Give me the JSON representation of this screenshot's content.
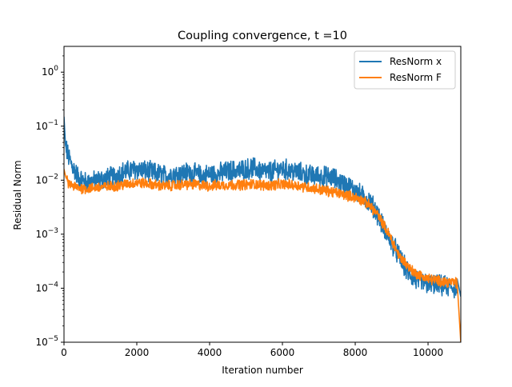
{
  "chart_data": {
    "type": "line",
    "title": "Coupling convergence, t =10",
    "xlabel": "Iteration number",
    "ylabel": "Residual Norm",
    "xlim": [
      0,
      10900
    ],
    "ylim": [
      1e-05,
      3
    ],
    "yscale": "log",
    "grid": false,
    "legend_position": "top-right",
    "x_ticks": [
      {
        "value": 0,
        "label": "0"
      },
      {
        "value": 2000,
        "label": "2000"
      },
      {
        "value": 4000,
        "label": "4000"
      },
      {
        "value": 6000,
        "label": "6000"
      },
      {
        "value": 8000,
        "label": "8000"
      },
      {
        "value": 10000,
        "label": "10000"
      }
    ],
    "y_ticks": [
      {
        "value": 1e-05,
        "base": "10",
        "exp": "−5"
      },
      {
        "value": 0.0001,
        "base": "10",
        "exp": "−4"
      },
      {
        "value": 0.001,
        "base": "10",
        "exp": "−3"
      },
      {
        "value": 0.01,
        "base": "10",
        "exp": "−2"
      },
      {
        "value": 0.1,
        "base": "10",
        "exp": "−1"
      },
      {
        "value": 1,
        "base": "10",
        "exp": "0"
      }
    ],
    "series": [
      {
        "name": "ResNorm x",
        "color": "#1f77b4",
        "x": [
          0,
          40,
          100,
          200,
          400,
          600,
          800,
          1000,
          1200,
          1400,
          1600,
          1800,
          2000,
          2200,
          2400,
          2600,
          2800,
          3000,
          3200,
          3400,
          3600,
          3800,
          4000,
          4200,
          4400,
          4600,
          4800,
          5000,
          5200,
          5400,
          5600,
          5800,
          6000,
          6200,
          6400,
          6600,
          6800,
          7000,
          7200,
          7400,
          7600,
          7800,
          8000,
          8200,
          8400,
          8600,
          8800,
          9000,
          9200,
          9400,
          9600,
          9800,
          10000,
          10200,
          10400,
          10600,
          10800,
          10900
        ],
        "y": [
          0.15,
          0.045,
          0.03,
          0.02,
          0.011,
          0.009,
          0.0095,
          0.01,
          0.011,
          0.012,
          0.014,
          0.015,
          0.016,
          0.015,
          0.014,
          0.013,
          0.012,
          0.013,
          0.013,
          0.014,
          0.013,
          0.012,
          0.013,
          0.013,
          0.014,
          0.015,
          0.015,
          0.016,
          0.017,
          0.015,
          0.014,
          0.015,
          0.016,
          0.015,
          0.014,
          0.013,
          0.012,
          0.012,
          0.0115,
          0.011,
          0.009,
          0.0078,
          0.0065,
          0.005,
          0.004,
          0.0025,
          0.0012,
          0.0007,
          0.0004,
          0.00022,
          0.00015,
          0.00013,
          0.00012,
          0.000115,
          0.00011,
          0.000105,
          0.0001,
          7e-05
        ]
      },
      {
        "name": "ResNorm F",
        "color": "#ff7f0e",
        "x": [
          0,
          40,
          100,
          200,
          400,
          600,
          800,
          1000,
          1200,
          1400,
          1600,
          1800,
          2000,
          2200,
          2400,
          2600,
          2800,
          3000,
          3200,
          3400,
          3600,
          3800,
          4000,
          4200,
          4400,
          4600,
          4800,
          5000,
          5200,
          5400,
          5600,
          5800,
          6000,
          6200,
          6400,
          6600,
          6800,
          7000,
          7200,
          7400,
          7600,
          7800,
          8000,
          8200,
          8400,
          8600,
          8800,
          9000,
          9200,
          9400,
          9600,
          9800,
          10000,
          10200,
          10400,
          10600,
          10800,
          10900
        ],
        "y": [
          0.016,
          0.012,
          0.009,
          0.008,
          0.0072,
          0.007,
          0.0072,
          0.0074,
          0.0076,
          0.0078,
          0.0082,
          0.0086,
          0.009,
          0.0088,
          0.0084,
          0.008,
          0.0078,
          0.008,
          0.0082,
          0.0084,
          0.0083,
          0.008,
          0.0078,
          0.008,
          0.0081,
          0.0082,
          0.0082,
          0.0083,
          0.0085,
          0.0082,
          0.008,
          0.0082,
          0.0084,
          0.0082,
          0.008,
          0.0076,
          0.0072,
          0.0068,
          0.0064,
          0.006,
          0.0056,
          0.0052,
          0.0048,
          0.0042,
          0.0034,
          0.0024,
          0.0014,
          0.0008,
          0.0004,
          0.00028,
          0.0002,
          0.00017,
          0.00015,
          0.00014,
          0.000135,
          0.00013,
          0.000125,
          1e-05
        ]
      }
    ]
  }
}
